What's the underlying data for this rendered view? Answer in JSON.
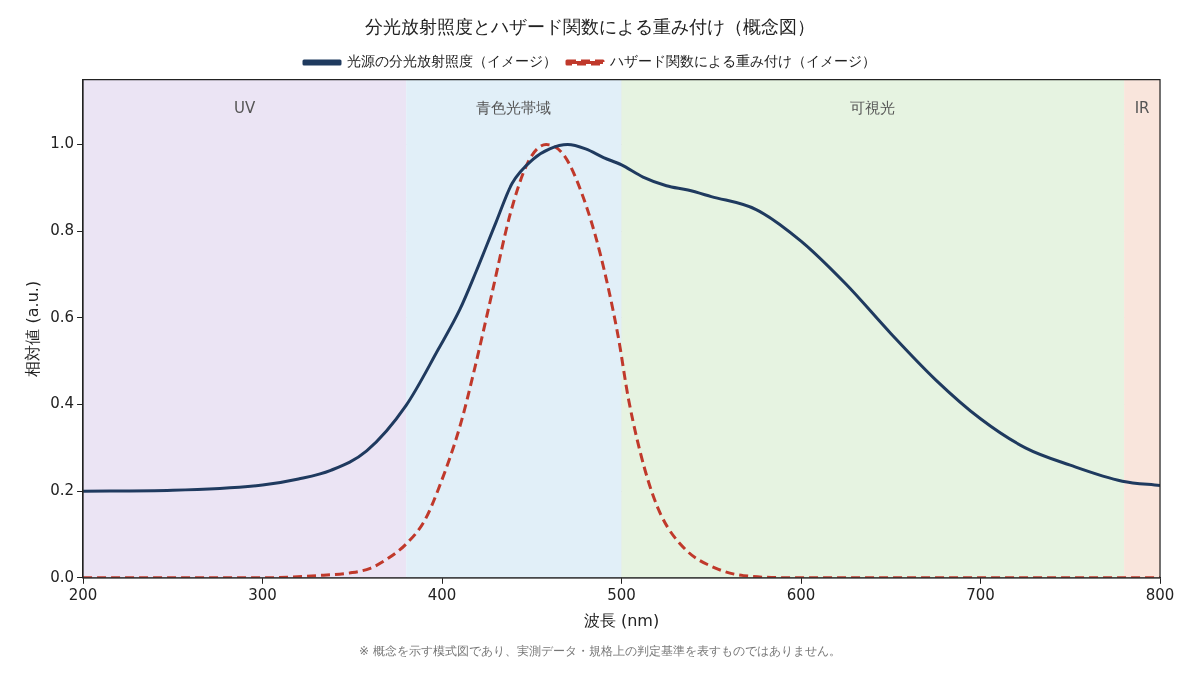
{
  "chart_data": {
    "type": "line",
    "title": "分光放射照度とハザード関数による重み付け（概念図）",
    "xlabel": "波長 (nm)",
    "ylabel": "相対値 (a.u.)",
    "xlim": [
      200,
      800
    ],
    "xticks": [
      200,
      300,
      400,
      500,
      600,
      700,
      800
    ],
    "ylim": [
      0,
      1.15
    ],
    "yticks": [
      {
        "value": 0,
        "label": "0.0"
      },
      0.2,
      0.4,
      0.6,
      0.8,
      {
        "value": 1,
        "label": "1.0"
      }
    ],
    "grid": true,
    "legend": "top",
    "marker": "none",
    "series": [
      {
        "name": "光源の分光放射照度（イメージ）",
        "color": "#1f3a5f",
        "line_style": "solid",
        "x": [
          200,
          250,
          300,
          320,
          338,
          358,
          380,
          398,
          410,
          419,
          430,
          439,
          451,
          460,
          470,
          480,
          490,
          500,
          512,
          525,
          537,
          550,
          575,
          600,
          625,
          650,
          675,
          700,
          725,
          750,
          779,
          800
        ],
        "values": [
          0.2,
          0.202,
          0.214,
          0.228,
          0.248,
          0.293,
          0.398,
          0.528,
          0.62,
          0.707,
          0.82,
          0.91,
          0.967,
          0.99,
          1.0,
          0.99,
          0.97,
          0.953,
          0.925,
          0.905,
          0.895,
          0.88,
          0.85,
          0.777,
          0.678,
          0.564,
          0.457,
          0.367,
          0.3,
          0.26,
          0.223,
          0.213
        ]
      },
      {
        "name": "ハザード関数による重み付け（イメージ）",
        "color": "#c0392b",
        "line_style": "dashed",
        "x": [
          200,
          300,
          330,
          350,
          360,
          370,
          380,
          390,
          398,
          410,
          418,
          428,
          438,
          448,
          458,
          468,
          478,
          488,
          498,
          504,
          513,
          522,
          536,
          552,
          568,
          600,
          700,
          800
        ],
        "values": [
          0,
          0,
          0.005,
          0.012,
          0.022,
          0.045,
          0.078,
          0.13,
          0.205,
          0.35,
          0.48,
          0.66,
          0.84,
          0.96,
          1.0,
          0.975,
          0.886,
          0.75,
          0.56,
          0.41,
          0.25,
          0.145,
          0.064,
          0.023,
          0.005,
          0,
          0,
          0
        ]
      }
    ],
    "bands": [
      {
        "axis": "x",
        "from": 200,
        "to": 380,
        "label": "UV",
        "color": "#ebe4f4"
      },
      {
        "axis": "x",
        "from": 380,
        "to": 500,
        "label": "青色光帯域",
        "color": "#e1eff8"
      },
      {
        "axis": "x",
        "from": 500,
        "to": 780,
        "label": "可視光",
        "color": "#e6f3e1"
      },
      {
        "axis": "x",
        "from": 780,
        "to": 800,
        "label": "IR",
        "color": "#f9e5dc"
      }
    ],
    "annotations": [
      "※ 概念を示す模式図であり、実測データ・規格上の判定基準を表すものではありません。"
    ]
  }
}
